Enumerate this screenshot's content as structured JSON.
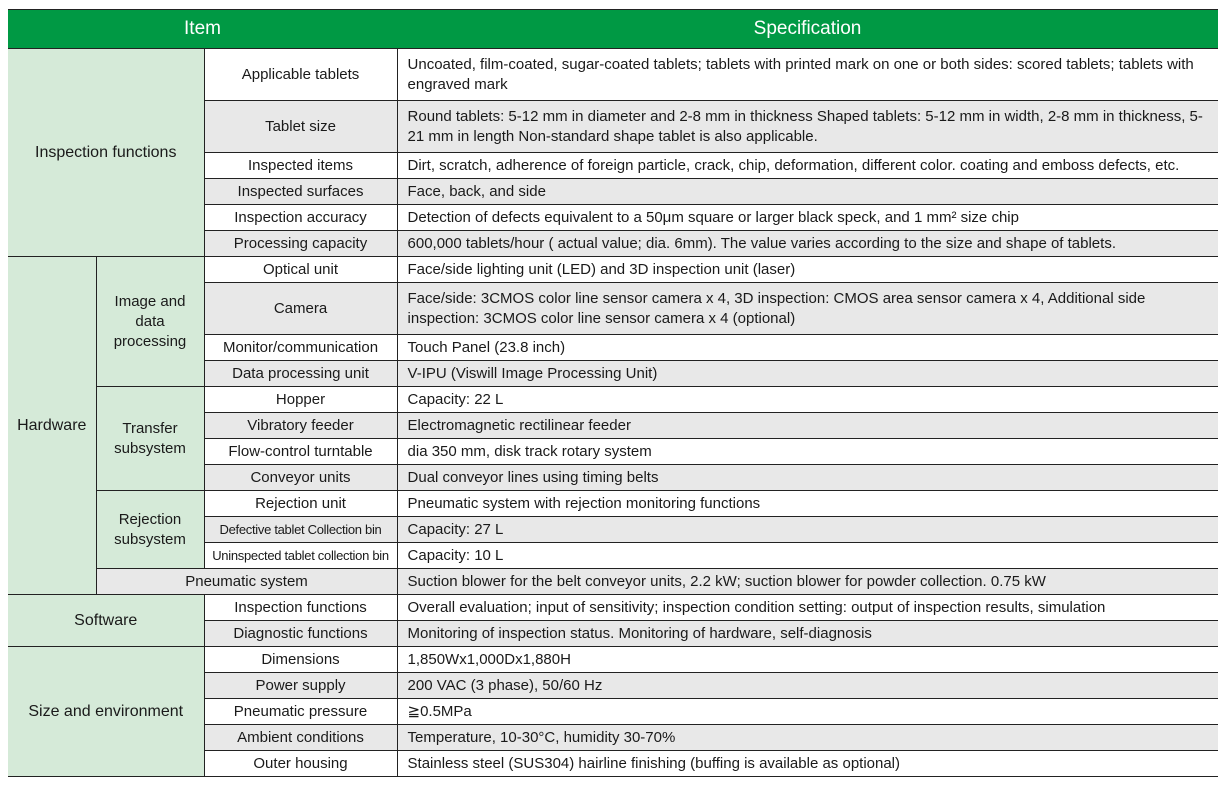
{
  "header": {
    "item": "Item",
    "specification": "Specification"
  },
  "colors": {
    "header": "#009944",
    "group": "#d5ead8",
    "alt_row": "#e8e8e8"
  },
  "sections": [
    {
      "label": "Inspection functions",
      "rows": [
        {
          "item": "Applicable tablets",
          "spec": "Uncoated, film-coated,  sugar-coated tablets; tablets with printed mark on one or both sides: scored tablets; tablets with engraved mark",
          "tall": true
        },
        {
          "item": "Tablet size",
          "spec": "Round tablets: 5-12 mm in diameter and 2-8 mm in thickness  Shaped tablets: 5-12 mm in width, 2-8 mm in thickness, 5-21 mm in length  Non-standard shape tablet is also applicable.",
          "tall": true
        },
        {
          "item": "Inspected items",
          "spec": "Dirt, scratch, adherence of foreign particle, crack, chip, deformation, different color. coating and emboss defects, etc."
        },
        {
          "item": "Inspected surfaces",
          "spec": "Face, back, and side"
        },
        {
          "item": "Inspection accuracy",
          "spec": "Detection of defects equivalent to a 50μm square or larger black speck, and 1 mm² size chip"
        },
        {
          "item": "Processing capacity",
          "spec": "600,000 tablets/hour ( actual value; dia. 6mm). The value varies according to the size and shape of tablets."
        }
      ]
    },
    {
      "label": "Hardware",
      "subgroups": [
        {
          "label": "Image and data processing",
          "rows": [
            {
              "item": "Optical unit",
              "spec": "Face/side lighting unit (LED) and 3D inspection unit (laser)"
            },
            {
              "item": "Camera",
              "spec": "Face/side: 3CMOS color line sensor camera x 4, 3D inspection: CMOS area sensor camera x 4, Additional side inspection: 3CMOS color line sensor camera x 4 (optional)",
              "tall": true
            },
            {
              "item": "Monitor/communication",
              "spec": "Touch Panel (23.8 inch)"
            },
            {
              "item": "Data processing unit",
              "spec": "V-IPU (Viswill Image Processing Unit)"
            }
          ]
        },
        {
          "label": "Transfer subsystem",
          "rows": [
            {
              "item": "Hopper",
              "spec": "Capacity: 22 L"
            },
            {
              "item": "Vibratory feeder",
              "spec": "Electromagnetic rectilinear feeder"
            },
            {
              "item": "Flow-control turntable",
              "spec": "dia 350 mm, disk track rotary system"
            },
            {
              "item": "Conveyor units",
              "spec": "Dual conveyor lines using timing belts"
            }
          ]
        },
        {
          "label": "Rejection subsystem",
          "rows": [
            {
              "item": "Rejection unit",
              "spec": "Pneumatic system with rejection monitoring functions"
            },
            {
              "item": "Defective tablet Collection bin",
              "spec": "Capacity: 27 L",
              "small": true
            },
            {
              "item": "Uninspected tablet collection bin",
              "spec": "Capacity: 10 L",
              "small": true
            }
          ]
        },
        {
          "label": null,
          "rows": [
            {
              "item": "Pneumatic system",
              "spec": "Suction blower for the belt conveyor units, 2.2 kW; suction blower for powder collection. 0.75 kW"
            }
          ]
        }
      ]
    },
    {
      "label": "Software",
      "rows": [
        {
          "item": "Inspection functions",
          "spec": "Overall evaluation; input of sensitivity; inspection condition setting: output of inspection results, simulation"
        },
        {
          "item": "Diagnostic functions",
          "spec": "Monitoring of inspection status. Monitoring of hardware, self-diagnosis"
        }
      ]
    },
    {
      "label": "Size and environment",
      "rows": [
        {
          "item": "Dimensions",
          "spec": "1,850Wx1,000Dx1,880H"
        },
        {
          "item": "Power supply",
          "spec": "200 VAC (3 phase), 50/60 Hz"
        },
        {
          "item": "Pneumatic pressure",
          "spec": "≧0.5MPa"
        },
        {
          "item": "Ambient conditions",
          "spec": "Temperature, 10-30°C, humidity 30-70%"
        },
        {
          "item": "Outer housing",
          "spec": "Stainless steel (SUS304) hairline finishing (buffing is available as optional)"
        }
      ]
    }
  ]
}
